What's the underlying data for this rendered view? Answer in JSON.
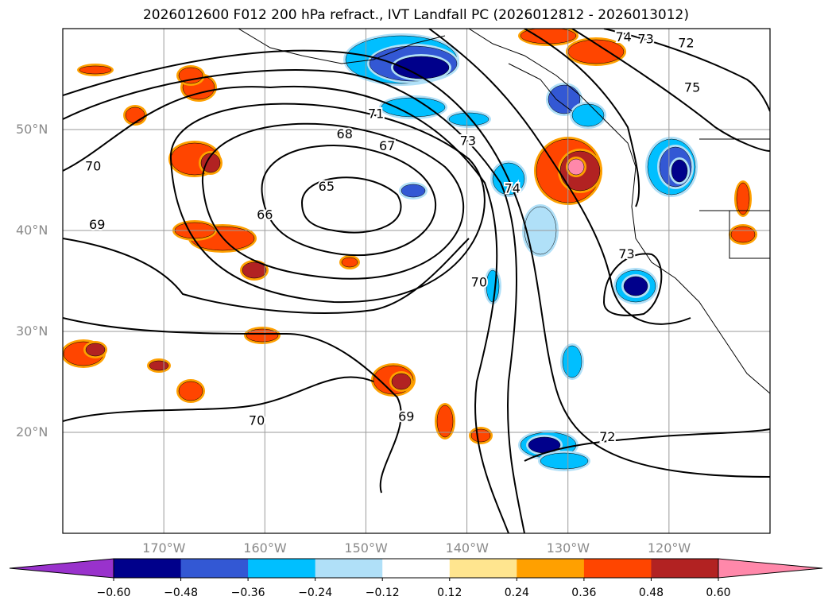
{
  "title": "2026012600 F012 200 hPa refract., IVT Landfall PC (2026012812 - 2026013012)",
  "map": {
    "lat_labels": [
      "50°N",
      "40°N",
      "30°N",
      "20°N"
    ],
    "lat_values": [
      50,
      40,
      30,
      20
    ],
    "lon_labels": [
      "170°W",
      "160°W",
      "150°W",
      "140°W",
      "130°W",
      "120°W"
    ],
    "lon_values": [
      -170,
      -160,
      -150,
      -140,
      -130,
      -120
    ],
    "extent": {
      "lon_min": -180,
      "lon_max": -110,
      "lat_min": 10,
      "lat_max": 60
    },
    "contour_labels": [
      {
        "text": "74",
        "lon": -124.5,
        "lat": 59.1
      },
      {
        "text": "73",
        "lon": -122.3,
        "lat": 58.9
      },
      {
        "text": "72",
        "lon": -118.3,
        "lat": 58.5
      },
      {
        "text": "75",
        "lon": -117.7,
        "lat": 54.1
      },
      {
        "text": "71",
        "lon": -149.0,
        "lat": 51.5
      },
      {
        "text": "68",
        "lon": -152.1,
        "lat": 49.5
      },
      {
        "text": "67",
        "lon": -147.9,
        "lat": 48.3
      },
      {
        "text": "73",
        "lon": -139.9,
        "lat": 48.8
      },
      {
        "text": "74",
        "lon": -135.5,
        "lat": 44.1
      },
      {
        "text": "70",
        "lon": -177.0,
        "lat": 46.3
      },
      {
        "text": "65",
        "lon": -153.9,
        "lat": 44.3
      },
      {
        "text": "66",
        "lon": -160.0,
        "lat": 41.5
      },
      {
        "text": "69",
        "lon": -176.6,
        "lat": 40.5
      },
      {
        "text": "73",
        "lon": -124.2,
        "lat": 37.6
      },
      {
        "text": "70",
        "lon": -138.8,
        "lat": 34.8
      },
      {
        "text": "69",
        "lon": -146.0,
        "lat": 21.5
      },
      {
        "text": "70",
        "lon": -160.8,
        "lat": 21.1
      },
      {
        "text": "72",
        "lon": -126.1,
        "lat": 19.5
      }
    ]
  },
  "colorbar": {
    "colors": [
      "#9932cc",
      "#00008b",
      "#3358d4",
      "#00bfff",
      "#b0e0f8",
      "#ffffff",
      "#ffe58f",
      "#ffa000",
      "#ff4500",
      "#b22222",
      "#ff88aa"
    ],
    "tick_labels": [
      "−0.60",
      "−0.48",
      "−0.36",
      "−0.24",
      "−0.12",
      "0.12",
      "0.24",
      "0.36",
      "0.48",
      "0.60"
    ]
  }
}
